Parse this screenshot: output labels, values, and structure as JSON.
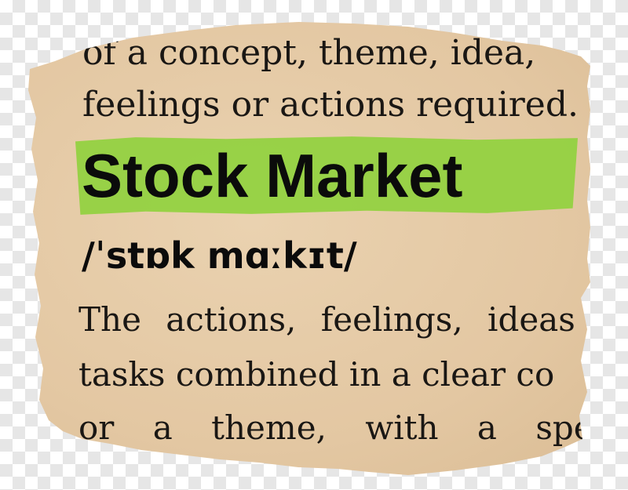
{
  "clipping": {
    "prev_line_1": "of a concept, theme, idea,",
    "prev_line_2": "feelings or actions required.",
    "headword": "Stock Market",
    "highlight_color": "#8fd13c",
    "pronunciation": "/ˈstɒk mɑːkɪt/",
    "definition_lines": [
      "The actions, feelings, ideas",
      "tasks combined in a clear co",
      "or a theme, with a spe"
    ]
  }
}
